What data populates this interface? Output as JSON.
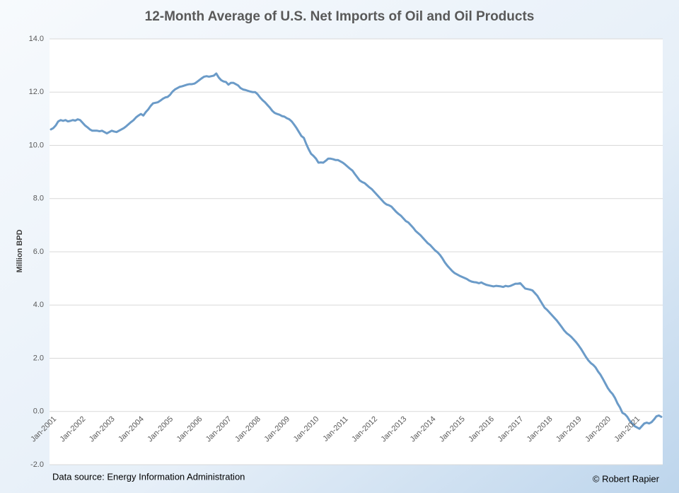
{
  "chart_data": {
    "type": "line",
    "title": "12-Month Average of U.S. Net Imports of Oil and Oil Products",
    "ylabel": "Million BPD",
    "source": "Data source: Energy Information Administration",
    "credit": "© Robert Rapier",
    "color": "#6b9bc8",
    "grid": true,
    "ylim": [
      -2,
      14
    ],
    "yticks": [
      {
        "value": -2,
        "label": "-2.0"
      },
      {
        "value": 0,
        "label": "0.0"
      },
      {
        "value": 2,
        "label": "2.0"
      },
      {
        "value": 4,
        "label": "4.0"
      },
      {
        "value": 6,
        "label": "6.0"
      },
      {
        "value": 8,
        "label": "8.0"
      },
      {
        "value": 10,
        "label": "10.0"
      },
      {
        "value": 12,
        "label": "12.0"
      },
      {
        "value": 14,
        "label": "14.0"
      }
    ],
    "categories": [
      "Jan-2001",
      null,
      null,
      null,
      null,
      null,
      null,
      null,
      null,
      null,
      null,
      null,
      "Jan-2002",
      null,
      null,
      null,
      null,
      null,
      null,
      null,
      null,
      null,
      null,
      null,
      "Jan-2003",
      null,
      null,
      null,
      null,
      null,
      null,
      null,
      null,
      null,
      null,
      null,
      "Jan-2004",
      null,
      null,
      null,
      null,
      null,
      null,
      null,
      null,
      null,
      null,
      null,
      "Jan-2005",
      null,
      null,
      null,
      null,
      null,
      null,
      null,
      null,
      null,
      null,
      null,
      "Jan-2006",
      null,
      null,
      null,
      null,
      null,
      null,
      null,
      null,
      null,
      null,
      null,
      "Jan-2007",
      null,
      null,
      null,
      null,
      null,
      null,
      null,
      null,
      null,
      null,
      null,
      "Jan-2008",
      null,
      null,
      null,
      null,
      null,
      null,
      null,
      null,
      null,
      null,
      null,
      "Jan-2009",
      null,
      null,
      null,
      null,
      null,
      null,
      null,
      null,
      null,
      null,
      null,
      "Jan-2010",
      null,
      null,
      null,
      null,
      null,
      null,
      null,
      null,
      null,
      null,
      null,
      "Jan-2011",
      null,
      null,
      null,
      null,
      null,
      null,
      null,
      null,
      null,
      null,
      null,
      "Jan-2012",
      null,
      null,
      null,
      null,
      null,
      null,
      null,
      null,
      null,
      null,
      null,
      "Jan-2013",
      null,
      null,
      null,
      null,
      null,
      null,
      null,
      null,
      null,
      null,
      null,
      "Jan-2014",
      null,
      null,
      null,
      null,
      null,
      null,
      null,
      null,
      null,
      null,
      null,
      "Jan-2015",
      null,
      null,
      null,
      null,
      null,
      null,
      null,
      null,
      null,
      null,
      null,
      "Jan-2016",
      null,
      null,
      null,
      null,
      null,
      null,
      null,
      null,
      null,
      null,
      null,
      "Jan-2017",
      null,
      null,
      null,
      null,
      null,
      null,
      null,
      null,
      null,
      null,
      null,
      "Jan-2018",
      null,
      null,
      null,
      null,
      null,
      null,
      null,
      null,
      null,
      null,
      null,
      "Jan-2019",
      null,
      null,
      null,
      null,
      null,
      null,
      null,
      null,
      null,
      null,
      null,
      "Jan-2020",
      null,
      null,
      null,
      null,
      null,
      null,
      null,
      null,
      null,
      null,
      null,
      "Jan-2021",
      null,
      null,
      null,
      null,
      null,
      null,
      null,
      null,
      null,
      null,
      null
    ],
    "values": [
      10.6,
      10.65,
      10.75,
      10.9,
      10.95,
      10.92,
      10.95,
      10.9,
      10.92,
      10.95,
      10.93,
      10.98,
      10.95,
      10.85,
      10.75,
      10.68,
      10.6,
      10.55,
      10.55,
      10.55,
      10.53,
      10.55,
      10.5,
      10.45,
      10.5,
      10.55,
      10.52,
      10.5,
      10.55,
      10.6,
      10.65,
      10.72,
      10.8,
      10.88,
      10.95,
      11.05,
      11.12,
      11.18,
      11.12,
      11.25,
      11.35,
      11.48,
      11.58,
      11.6,
      11.62,
      11.68,
      11.75,
      11.8,
      11.82,
      11.9,
      12.02,
      12.1,
      12.15,
      12.2,
      12.22,
      12.25,
      12.28,
      12.3,
      12.3,
      12.32,
      12.38,
      12.45,
      12.52,
      12.58,
      12.6,
      12.58,
      12.6,
      12.62,
      12.7,
      12.55,
      12.45,
      12.4,
      12.38,
      12.28,
      12.35,
      12.35,
      12.3,
      12.25,
      12.15,
      12.1,
      12.08,
      12.05,
      12.02,
      12.0,
      12.0,
      11.92,
      11.8,
      11.7,
      11.62,
      11.52,
      11.42,
      11.3,
      11.22,
      11.18,
      11.15,
      11.1,
      11.08,
      11.02,
      10.98,
      10.9,
      10.78,
      10.65,
      10.5,
      10.35,
      10.28,
      10.05,
      9.85,
      9.68,
      9.6,
      9.5,
      9.35,
      9.36,
      9.35,
      9.42,
      9.5,
      9.5,
      9.48,
      9.45,
      9.45,
      9.4,
      9.35,
      9.28,
      9.2,
      9.12,
      9.05,
      8.92,
      8.8,
      8.68,
      8.62,
      8.58,
      8.5,
      8.42,
      8.35,
      8.25,
      8.15,
      8.05,
      7.95,
      7.85,
      7.78,
      7.75,
      7.7,
      7.6,
      7.5,
      7.42,
      7.35,
      7.25,
      7.15,
      7.1,
      7.0,
      6.9,
      6.78,
      6.7,
      6.62,
      6.52,
      6.42,
      6.32,
      6.25,
      6.15,
      6.05,
      5.98,
      5.88,
      5.75,
      5.6,
      5.48,
      5.38,
      5.28,
      5.2,
      5.15,
      5.1,
      5.06,
      5.02,
      4.98,
      4.92,
      4.88,
      4.86,
      4.85,
      4.82,
      4.85,
      4.8,
      4.76,
      4.74,
      4.72,
      4.7,
      4.72,
      4.71,
      4.7,
      4.68,
      4.72,
      4.7,
      4.72,
      4.76,
      4.8,
      4.8,
      4.82,
      4.72,
      4.62,
      4.6,
      4.58,
      4.55,
      4.45,
      4.35,
      4.2,
      4.05,
      3.9,
      3.82,
      3.72,
      3.62,
      3.52,
      3.42,
      3.3,
      3.18,
      3.05,
      2.95,
      2.88,
      2.8,
      2.7,
      2.6,
      2.48,
      2.35,
      2.2,
      2.05,
      1.92,
      1.82,
      1.75,
      1.65,
      1.5,
      1.38,
      1.22,
      1.05,
      0.88,
      0.75,
      0.65,
      0.5,
      0.3,
      0.15,
      -0.05,
      -0.1,
      -0.2,
      -0.35,
      -0.45,
      -0.55,
      -0.6,
      -0.65,
      -0.55,
      -0.45,
      -0.42,
      -0.45,
      -0.4,
      -0.3,
      -0.18,
      -0.15,
      -0.2
    ]
  }
}
